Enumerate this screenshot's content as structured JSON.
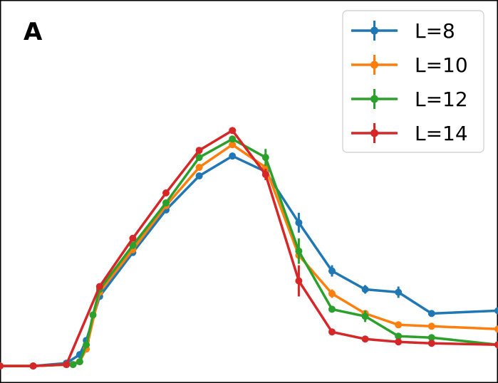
{
  "panel_label": "A",
  "chart_data": {
    "type": "line",
    "title": "",
    "xlabel": "",
    "ylabel": "",
    "xlim": [
      0.0,
      0.75
    ],
    "ylim": [
      0.0,
      0.27
    ],
    "grid": false,
    "legend_placement": "top-right",
    "series": [
      {
        "name": "L=8",
        "color": "#1f77b4",
        "points": [
          {
            "x": 0.0,
            "y": 0.012,
            "err": 0.0
          },
          {
            "x": 0.05,
            "y": 0.012,
            "err": 0.0
          },
          {
            "x": 0.1,
            "y": 0.014,
            "err": 0.0
          },
          {
            "x": 0.12,
            "y": 0.02,
            "err": 0.0
          },
          {
            "x": 0.13,
            "y": 0.03,
            "err": 0.0
          },
          {
            "x": 0.15,
            "y": 0.061,
            "err": 0.0
          },
          {
            "x": 0.2,
            "y": 0.092,
            "err": 0.0
          },
          {
            "x": 0.25,
            "y": 0.122,
            "err": 0.0
          },
          {
            "x": 0.3,
            "y": 0.146,
            "err": 0.0
          },
          {
            "x": 0.35,
            "y": 0.16,
            "err": 0.0
          },
          {
            "x": 0.4,
            "y": 0.149,
            "err": 0.0
          },
          {
            "x": 0.45,
            "y": 0.113,
            "err": 0.007
          },
          {
            "x": 0.5,
            "y": 0.079,
            "err": 0.004
          },
          {
            "x": 0.55,
            "y": 0.066,
            "err": 0.003
          },
          {
            "x": 0.6,
            "y": 0.064,
            "err": 0.004
          },
          {
            "x": 0.65,
            "y": 0.049,
            "err": 0.0
          },
          {
            "x": 0.75,
            "y": 0.051,
            "err": 0.0
          }
        ]
      },
      {
        "name": "L=10",
        "color": "#ff7f0e",
        "points": [
          {
            "x": 0.0,
            "y": 0.012,
            "err": 0.0
          },
          {
            "x": 0.05,
            "y": 0.012,
            "err": 0.0
          },
          {
            "x": 0.1,
            "y": 0.013,
            "err": 0.0
          },
          {
            "x": 0.12,
            "y": 0.015,
            "err": 0.0
          },
          {
            "x": 0.13,
            "y": 0.024,
            "err": 0.0
          },
          {
            "x": 0.15,
            "y": 0.064,
            "err": 0.0
          },
          {
            "x": 0.2,
            "y": 0.094,
            "err": 0.0
          },
          {
            "x": 0.25,
            "y": 0.125,
            "err": 0.0
          },
          {
            "x": 0.3,
            "y": 0.152,
            "err": 0.0
          },
          {
            "x": 0.35,
            "y": 0.168,
            "err": 0.0
          },
          {
            "x": 0.4,
            "y": 0.152,
            "err": 0.0
          },
          {
            "x": 0.45,
            "y": 0.09,
            "err": 0.0
          },
          {
            "x": 0.5,
            "y": 0.063,
            "err": 0.003
          },
          {
            "x": 0.55,
            "y": 0.049,
            "err": 0.0
          },
          {
            "x": 0.6,
            "y": 0.041,
            "err": 0.0
          },
          {
            "x": 0.65,
            "y": 0.04,
            "err": 0.0
          },
          {
            "x": 0.75,
            "y": 0.038,
            "err": 0.0
          }
        ]
      },
      {
        "name": "L=12",
        "color": "#2ca02c",
        "points": [
          {
            "x": 0.0,
            "y": 0.012,
            "err": 0.0
          },
          {
            "x": 0.05,
            "y": 0.012,
            "err": 0.0
          },
          {
            "x": 0.1,
            "y": 0.013,
            "err": 0.0
          },
          {
            "x": 0.11,
            "y": 0.013,
            "err": 0.0
          },
          {
            "x": 0.12,
            "y": 0.015,
            "err": 0.0
          },
          {
            "x": 0.13,
            "y": 0.027,
            "err": 0.0
          },
          {
            "x": 0.14,
            "y": 0.048,
            "err": 0.0
          },
          {
            "x": 0.15,
            "y": 0.066,
            "err": 0.0
          },
          {
            "x": 0.2,
            "y": 0.097,
            "err": 0.0
          },
          {
            "x": 0.25,
            "y": 0.127,
            "err": 0.0
          },
          {
            "x": 0.3,
            "y": 0.159,
            "err": 0.0
          },
          {
            "x": 0.35,
            "y": 0.172,
            "err": 0.0
          },
          {
            "x": 0.4,
            "y": 0.159,
            "err": 0.006
          },
          {
            "x": 0.45,
            "y": 0.093,
            "err": 0.009
          },
          {
            "x": 0.5,
            "y": 0.052,
            "err": 0.0
          },
          {
            "x": 0.55,
            "y": 0.047,
            "err": 0.004
          },
          {
            "x": 0.6,
            "y": 0.033,
            "err": 0.0
          },
          {
            "x": 0.65,
            "y": 0.032,
            "err": 0.0
          },
          {
            "x": 0.75,
            "y": 0.027,
            "err": 0.0
          }
        ]
      },
      {
        "name": "L=14",
        "color": "#d62728",
        "points": [
          {
            "x": 0.0,
            "y": 0.012,
            "err": 0.0
          },
          {
            "x": 0.05,
            "y": 0.012,
            "err": 0.0
          },
          {
            "x": 0.1,
            "y": 0.013,
            "err": 0.0
          },
          {
            "x": 0.15,
            "y": 0.068,
            "err": 0.0
          },
          {
            "x": 0.2,
            "y": 0.102,
            "err": 0.0
          },
          {
            "x": 0.25,
            "y": 0.134,
            "err": 0.0
          },
          {
            "x": 0.3,
            "y": 0.164,
            "err": 0.0
          },
          {
            "x": 0.35,
            "y": 0.178,
            "err": 0.0
          },
          {
            "x": 0.4,
            "y": 0.147,
            "err": 0.004
          },
          {
            "x": 0.45,
            "y": 0.072,
            "err": 0.011
          },
          {
            "x": 0.5,
            "y": 0.036,
            "err": 0.0
          },
          {
            "x": 0.55,
            "y": 0.031,
            "err": 0.0
          },
          {
            "x": 0.6,
            "y": 0.029,
            "err": 0.0
          },
          {
            "x": 0.65,
            "y": 0.028,
            "err": 0.0
          },
          {
            "x": 0.75,
            "y": 0.027,
            "err": 0.0
          }
        ]
      }
    ]
  }
}
